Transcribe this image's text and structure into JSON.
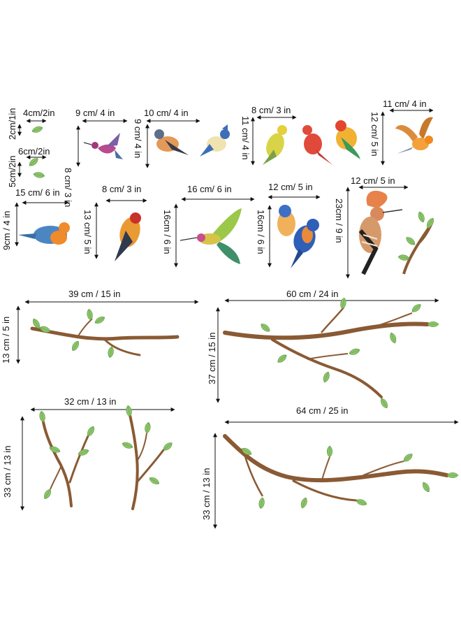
{
  "dimensions": {
    "leaf_small_w": "4cm/2in",
    "leaf_small_h": "2cm/1in",
    "leaf_pair_w": "6cm/2in",
    "leaf_pair_h": "5cm/2in",
    "hummingbird_w": "9  cm/ 4 in",
    "hummingbird_h": "8 cm/ 3 in",
    "finch_pair_w": "10 cm/ 4 in",
    "finch_pair_h": "9 cm/ 4 in",
    "bird_trio_w": "8 cm/ 3 in",
    "bird_trio_h": "11 cm/ 4 in",
    "flying_bird_w": "11 cm/ 4 in",
    "flying_bird_h": "12 cm/ 5 in",
    "robin_w": "15 cm/ 6 in",
    "robin_h": "9cm / 4 in",
    "goldfinch_w": "8 cm/ 3 in",
    "goldfinch_h": "13 cm/ 5 in",
    "bee_eater_w": "16 cm/ 6 in",
    "bee_eater_h": "16cm / 6 in",
    "bluebirds_w": "12 cm/ 5 in",
    "bluebirds_h": "16cm / 6 in",
    "hoopoe_w": "12 cm/ 5 in",
    "hoopoe_h": "23cm / 9 in",
    "branch1_w": "39 cm / 15 in",
    "branch1_h": "13 cm / 5 in",
    "branch2_w": "60 cm / 24 in",
    "branch2_h": "37 cm / 15 in",
    "branch3_w": "32 cm / 13 in",
    "branch3_h": "33 cm / 13 in",
    "branch4_w": "64 cm / 25 in",
    "branch4_h": "33 cm / 13 in"
  },
  "colors": {
    "leaf": "#8cc46a",
    "leaf_dark": "#5f9a45",
    "branch": "#8a5a34",
    "arrow": "#111111"
  }
}
